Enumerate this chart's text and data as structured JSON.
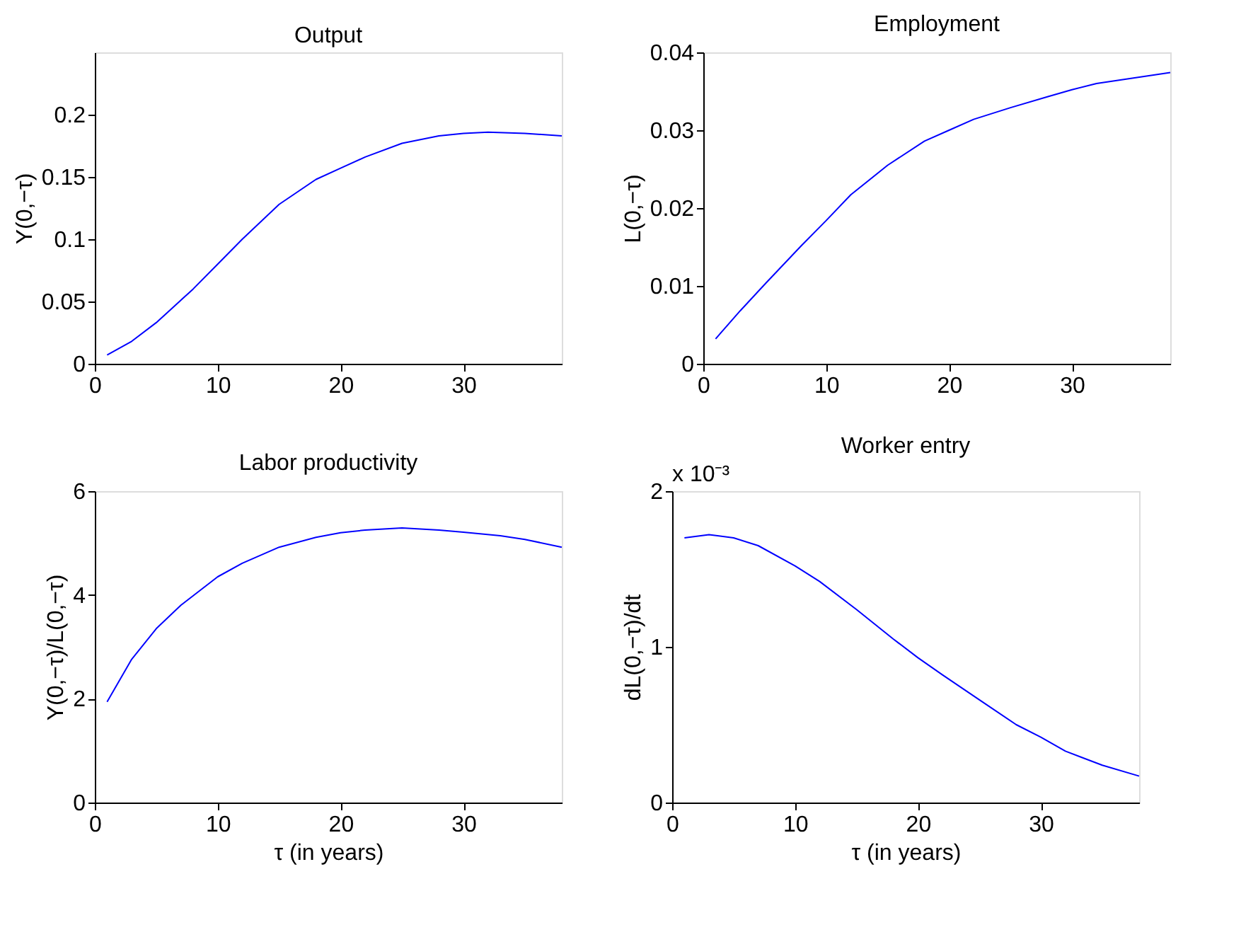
{
  "chart_data": [
    {
      "type": "line",
      "title": "Output",
      "ylabel": "Y(0,−τ)",
      "x": [
        1,
        3,
        5,
        8,
        10,
        12,
        15,
        18,
        20,
        22,
        25,
        28,
        30,
        32,
        35,
        38
      ],
      "series": [
        {
          "color": "#0000ff",
          "values": [
            0.007,
            0.018,
            0.033,
            0.06,
            0.08,
            0.1,
            0.128,
            0.148,
            0.157,
            0.166,
            0.177,
            0.183,
            0.185,
            0.186,
            0.185,
            0.183
          ]
        }
      ],
      "xlim": [
        0,
        38
      ],
      "xticks": [
        0,
        10,
        20,
        30
      ],
      "ylim": [
        0,
        0.25
      ],
      "yticks": [
        0,
        0.05,
        0.1,
        0.15,
        0.2
      ],
      "grid": false
    },
    {
      "type": "line",
      "title": "Employment",
      "ylabel": "L(0,−τ)",
      "x": [
        1,
        3,
        5,
        8,
        10,
        12,
        15,
        18,
        20,
        22,
        25,
        28,
        30,
        32,
        35,
        38
      ],
      "series": [
        {
          "color": "#0000ff",
          "values": [
            0.0032,
            0.0068,
            0.0102,
            0.0152,
            0.0184,
            0.0217,
            0.0255,
            0.0286,
            0.03,
            0.0314,
            0.0329,
            0.0343,
            0.0352,
            0.036,
            0.0367,
            0.0374
          ]
        }
      ],
      "xlim": [
        0,
        38
      ],
      "xticks": [
        0,
        10,
        20,
        30
      ],
      "ylim": [
        0,
        0.04
      ],
      "yticks": [
        0,
        0.01,
        0.02,
        0.03,
        0.04
      ],
      "grid": false
    },
    {
      "type": "line",
      "title": "Labor productivity",
      "xlabel": "τ (in years)",
      "ylabel": "Y(0,−τ)/L(0,−τ)",
      "x": [
        1,
        3,
        5,
        7,
        10,
        12,
        15,
        18,
        20,
        22,
        25,
        28,
        30,
        33,
        35,
        38
      ],
      "series": [
        {
          "color": "#0000ff",
          "values": [
            1.94,
            2.76,
            3.35,
            3.8,
            4.35,
            4.61,
            4.92,
            5.11,
            5.2,
            5.25,
            5.29,
            5.25,
            5.21,
            5.14,
            5.07,
            4.92
          ]
        }
      ],
      "xlim": [
        0,
        38
      ],
      "xticks": [
        0,
        10,
        20,
        30
      ],
      "ylim": [
        0,
        6
      ],
      "yticks": [
        0,
        2,
        4,
        6
      ],
      "grid": false
    },
    {
      "type": "line",
      "title": "Worker entry",
      "xlabel": "τ (in years)",
      "ylabel": "dL(0,−τ)/dt",
      "annotations": [
        "x 10⁻³"
      ],
      "x": [
        1,
        3,
        5,
        7,
        10,
        12,
        15,
        18,
        20,
        22,
        25,
        28,
        30,
        32,
        35,
        38
      ],
      "series": [
        {
          "color": "#0000ff",
          "values": [
            1.7,
            1.72,
            1.7,
            1.65,
            1.52,
            1.42,
            1.24,
            1.05,
            0.93,
            0.82,
            0.66,
            0.5,
            0.42,
            0.33,
            0.24,
            0.17
          ]
        }
      ],
      "xlim": [
        0,
        38
      ],
      "xticks": [
        0,
        10,
        20,
        30
      ],
      "ylim": [
        0,
        2
      ],
      "yticks": [
        0,
        1,
        2
      ],
      "grid": false
    }
  ]
}
